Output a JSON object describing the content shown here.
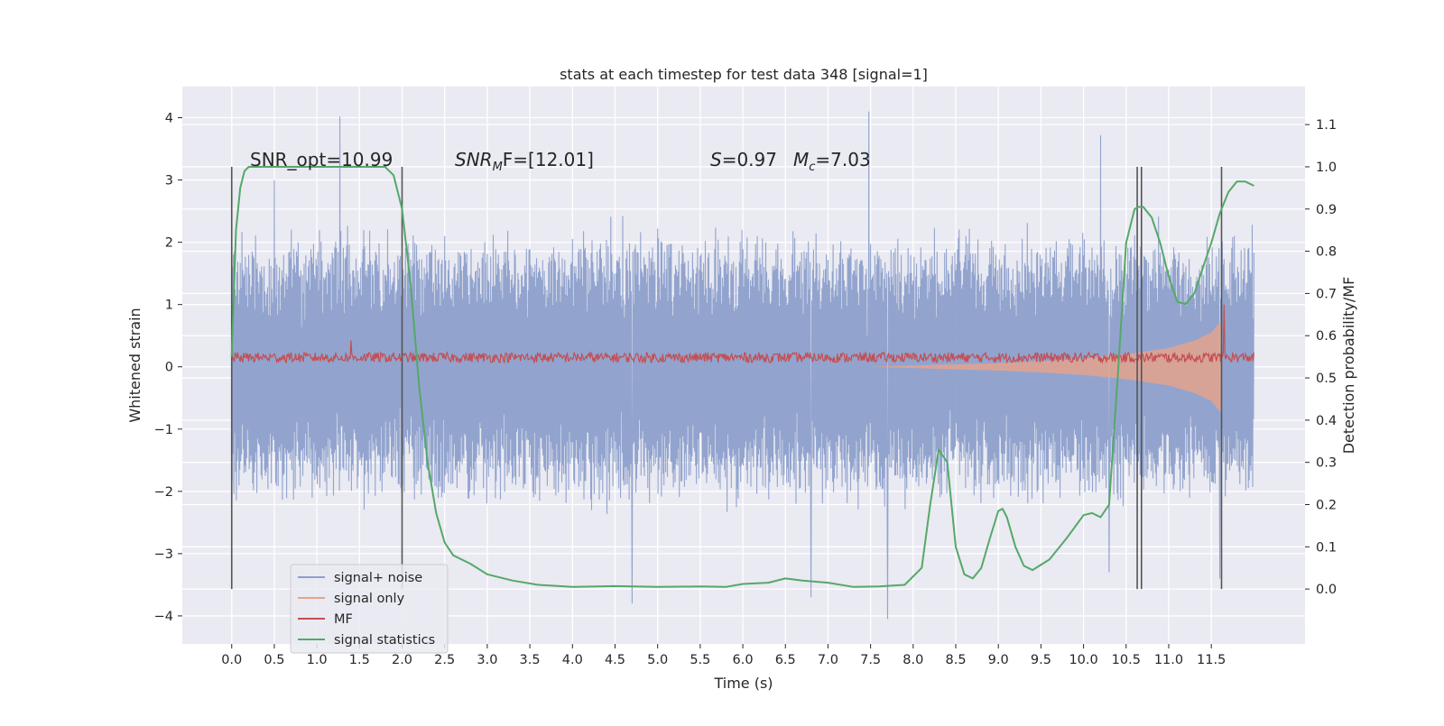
{
  "chart_data": {
    "type": "line",
    "title": "stats at each timestep for test data 348 [signal=1]",
    "xlabel": "Time (s)",
    "ylabel_left": "Whitened strain",
    "ylabel_right": "Detection probability/MF",
    "xlim": [
      -0.58,
      12.6
    ],
    "ylim_left": [
      -4.45,
      4.5
    ],
    "ylim_right": [
      -0.13,
      1.19
    ],
    "x_ticks": [
      0.0,
      0.5,
      1.0,
      1.5,
      2.0,
      2.5,
      3.0,
      3.5,
      4.0,
      4.5,
      5.0,
      5.5,
      6.0,
      6.5,
      7.0,
      7.5,
      8.0,
      8.5,
      9.0,
      9.5,
      10.0,
      10.5,
      11.0,
      11.5
    ],
    "x_tick_labels": [
      "0.0",
      "0.5",
      "1.0",
      "1.5",
      "2.0",
      "2.5",
      "3.0",
      "3.5",
      "4.0",
      "4.5",
      "5.0",
      "5.5",
      "6.0",
      "6.5",
      "7.0",
      "7.5",
      "8.0",
      "8.5",
      "9.0",
      "9.5",
      "10.0",
      "10.5",
      "11.0",
      "11.5"
    ],
    "y_ticks_left": [
      -4,
      -3,
      -2,
      -1,
      0,
      1,
      2,
      3,
      4
    ],
    "y_tick_labels_left": [
      "−4",
      "−3",
      "−2",
      "−1",
      "0",
      "1",
      "2",
      "3",
      "4"
    ],
    "y_ticks_right": [
      0.0,
      0.1,
      0.2,
      0.3,
      0.4,
      0.5,
      0.6,
      0.7,
      0.8,
      0.9,
      1.0,
      1.1
    ],
    "y_tick_labels_right": [
      "0.0",
      "0.1",
      "0.2",
      "0.3",
      "0.4",
      "0.5",
      "0.6",
      "0.7",
      "0.8",
      "0.9",
      "1.0",
      "1.1"
    ],
    "grid": true,
    "legend_position": "lower-left",
    "annotations": {
      "snr_opt": "SNR_opt=10.99",
      "snr_mf_base": "SNR",
      "snr_mf_sub": "M",
      "snr_mf_rest": "F=[12.01]",
      "s_label": "S",
      "s_value": "=0.97",
      "mc_label": "M",
      "mc_sub": "c",
      "mc_value": "=7.03"
    },
    "vertical_markers": [
      0.0,
      2.0,
      10.63,
      10.68,
      11.62
    ],
    "marker_range_right": [
      0.0,
      1.0
    ],
    "series": [
      {
        "name": "signal+ noise",
        "color": "#8da0cb",
        "axis": "left",
        "x_range": [
          0.0,
          12.0
        ],
        "typical_abs": 1.95,
        "peak_points": [
          [
            1.27,
            4.02
          ],
          [
            7.48,
            4.1
          ],
          [
            10.2,
            3.72
          ],
          [
            0.5,
            3.0
          ],
          [
            7.7,
            -4.05
          ],
          [
            6.8,
            -3.7
          ],
          [
            4.7,
            -3.8
          ],
          [
            11.6,
            -3.4
          ],
          [
            10.3,
            -3.3
          ]
        ]
      },
      {
        "name": "signal only",
        "color": "#e8a38a",
        "axis": "left",
        "x": [
          7.5,
          8.0,
          8.5,
          9.0,
          9.5,
          10.0,
          10.5,
          11.0,
          11.3,
          11.5,
          11.62
        ],
        "envelope": [
          0.0,
          0.02,
          0.04,
          0.06,
          0.09,
          0.13,
          0.2,
          0.3,
          0.42,
          0.55,
          0.75
        ]
      },
      {
        "name": "MF",
        "color": "#c44e52",
        "axis": "left",
        "x_range": [
          0.0,
          12.0
        ],
        "baseline": 0.15,
        "peak_points": [
          [
            0.0,
            0.4
          ],
          [
            1.4,
            0.42
          ],
          [
            11.65,
            1.0
          ]
        ]
      },
      {
        "name": "signal statistics",
        "color": "#55a868",
        "axis": "right",
        "x": [
          0.0,
          0.05,
          0.1,
          0.15,
          0.2,
          0.3,
          0.5,
          1.0,
          1.5,
          1.8,
          1.9,
          2.0,
          2.1,
          2.2,
          2.3,
          2.4,
          2.5,
          2.6,
          2.8,
          3.0,
          3.3,
          3.6,
          4.0,
          4.5,
          5.0,
          5.5,
          5.8,
          6.0,
          6.3,
          6.5,
          6.7,
          7.0,
          7.3,
          7.6,
          7.9,
          8.1,
          8.2,
          8.3,
          8.4,
          8.5,
          8.6,
          8.7,
          8.8,
          8.9,
          9.0,
          9.05,
          9.1,
          9.2,
          9.3,
          9.4,
          9.6,
          9.8,
          10.0,
          10.1,
          10.2,
          10.3,
          10.4,
          10.5,
          10.6,
          10.65,
          10.7,
          10.8,
          10.9,
          11.0,
          11.1,
          11.2,
          11.3,
          11.4,
          11.5,
          11.6,
          11.7,
          11.8,
          11.9,
          12.0
        ],
        "y": [
          0.55,
          0.85,
          0.95,
          0.99,
          1.0,
          1.0,
          1.0,
          1.0,
          1.0,
          1.0,
          0.98,
          0.9,
          0.72,
          0.48,
          0.3,
          0.18,
          0.11,
          0.08,
          0.06,
          0.035,
          0.02,
          0.01,
          0.005,
          0.007,
          0.005,
          0.006,
          0.005,
          0.012,
          0.015,
          0.025,
          0.02,
          0.015,
          0.005,
          0.006,
          0.01,
          0.05,
          0.2,
          0.33,
          0.3,
          0.1,
          0.035,
          0.025,
          0.05,
          0.12,
          0.185,
          0.19,
          0.17,
          0.1,
          0.055,
          0.045,
          0.07,
          0.12,
          0.175,
          0.18,
          0.17,
          0.2,
          0.5,
          0.82,
          0.9,
          0.905,
          0.905,
          0.88,
          0.82,
          0.74,
          0.68,
          0.675,
          0.7,
          0.76,
          0.82,
          0.89,
          0.94,
          0.965,
          0.965,
          0.955
        ]
      }
    ]
  }
}
